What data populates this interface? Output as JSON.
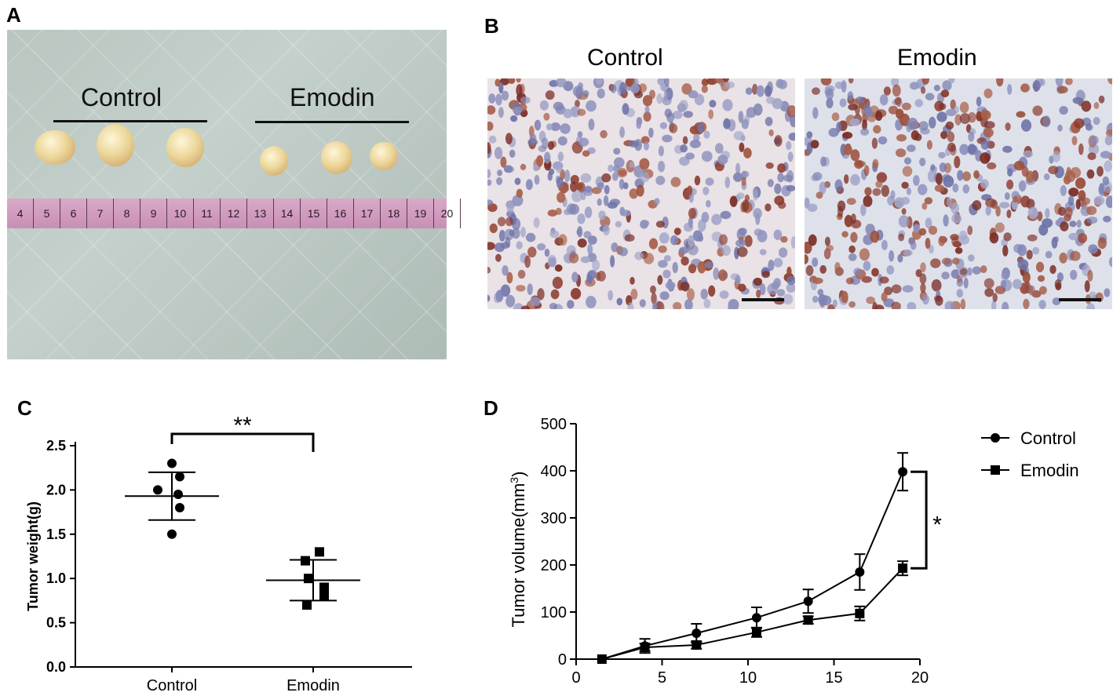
{
  "panels": {
    "a": {
      "letter": "A",
      "labels": [
        "Control",
        "Emodin"
      ],
      "ruler_ticks": [
        "4",
        "5",
        "6",
        "7",
        "8",
        "9",
        "10",
        "11",
        "12",
        "13",
        "14",
        "15",
        "16",
        "17",
        "18",
        "19",
        "20"
      ]
    },
    "b": {
      "letter": "B",
      "titles": [
        "Control",
        "Emodin"
      ]
    },
    "c": {
      "letter": "C"
    },
    "d": {
      "letter": "D"
    }
  },
  "chart_data": [
    {
      "type": "scatter",
      "panel": "C",
      "ylabel": "Tumor weight(g)",
      "xlabel": "",
      "categories": [
        "Control",
        "Emodin"
      ],
      "ylim": [
        0,
        2.5
      ],
      "yticks": [
        "0.0",
        "0.5",
        "1.0",
        "1.5",
        "2.0",
        "2.5"
      ],
      "series": [
        {
          "name": "Control",
          "marker": "circle",
          "points": [
            2.3,
            2.15,
            2.0,
            1.95,
            1.8,
            1.5
          ],
          "mean": 1.93,
          "sd": 0.27
        },
        {
          "name": "Emodin",
          "marker": "square",
          "points": [
            1.3,
            1.2,
            1.0,
            0.9,
            0.8,
            0.7
          ],
          "mean": 0.98,
          "sd": 0.23
        }
      ],
      "significance": "**"
    },
    {
      "type": "line",
      "panel": "D",
      "ylabel": "Tumor volume(mm",
      "ylabel_sup": "3",
      "ylabel_end": ")",
      "xlabel": "",
      "xlim": [
        0,
        20
      ],
      "ylim": [
        0,
        500
      ],
      "xticks": [
        "0",
        "5",
        "10",
        "15",
        "20"
      ],
      "yticks": [
        "0",
        "100",
        "200",
        "300",
        "400",
        "500"
      ],
      "x": [
        1.5,
        4,
        7,
        10.5,
        13.5,
        16.5,
        19
      ],
      "series": [
        {
          "name": "Control",
          "marker": "circle",
          "values": [
            0,
            28,
            55,
            88,
            123,
            185,
            398
          ],
          "err": [
            0,
            15,
            20,
            22,
            25,
            38,
            40
          ]
        },
        {
          "name": "Emodin",
          "marker": "square",
          "values": [
            0,
            25,
            30,
            57,
            83,
            97,
            193
          ],
          "err": [
            0,
            8,
            8,
            10,
            8,
            15,
            15
          ]
        }
      ],
      "legend": "top-right",
      "significance": "*"
    }
  ]
}
